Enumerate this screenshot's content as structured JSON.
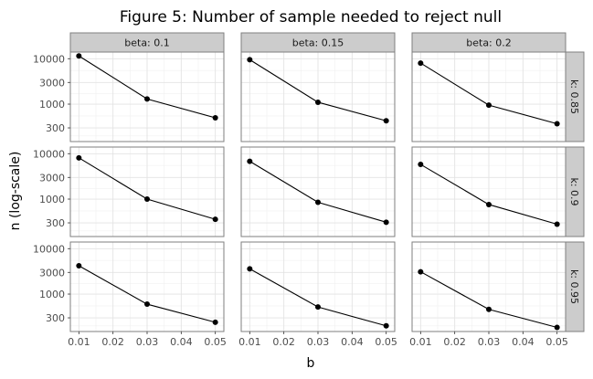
{
  "chart_data": {
    "type": "line",
    "title": "Figure 5: Number of sample needed to reject null",
    "xlabel": "b",
    "ylabel": "n (log-scale)",
    "x_scale": "linear",
    "y_scale": "log",
    "x_ticks": [
      0.01,
      0.02,
      0.03,
      0.04,
      0.05
    ],
    "x_tick_labels": [
      "0.01",
      "0.02",
      "0.03",
      "0.04",
      "0.05"
    ],
    "y_ticks": [
      300,
      1000,
      3000,
      10000
    ],
    "y_tick_labels": [
      "300",
      "1000",
      "3000",
      "10000"
    ],
    "xlim": [
      0.0075,
      0.0525
    ],
    "ylim": [
      150,
      14000
    ],
    "grid": true,
    "facet_cols_label": "beta",
    "facet_rows_label": "k",
    "col_strips": [
      "beta: 0.1",
      "beta: 0.15",
      "beta: 0.2"
    ],
    "row_strips": [
      "k: 0.85",
      "k: 0.9",
      "k: 0.95"
    ],
    "x": [
      0.01,
      0.03,
      0.05
    ],
    "panels": [
      {
        "row": 0,
        "col": 0,
        "values": [
          11500,
          1300,
          500
        ]
      },
      {
        "row": 0,
        "col": 1,
        "values": [
          9500,
          1100,
          430
        ]
      },
      {
        "row": 0,
        "col": 2,
        "values": [
          8000,
          950,
          370
        ]
      },
      {
        "row": 1,
        "col": 0,
        "values": [
          8100,
          1000,
          360
        ]
      },
      {
        "row": 1,
        "col": 1,
        "values": [
          6800,
          850,
          310
        ]
      },
      {
        "row": 1,
        "col": 2,
        "values": [
          5800,
          760,
          280
        ]
      },
      {
        "row": 2,
        "col": 0,
        "values": [
          4200,
          600,
          240
        ]
      },
      {
        "row": 2,
        "col": 1,
        "values": [
          3600,
          520,
          200
        ]
      },
      {
        "row": 2,
        "col": 2,
        "values": [
          3100,
          460,
          185
        ]
      }
    ]
  }
}
